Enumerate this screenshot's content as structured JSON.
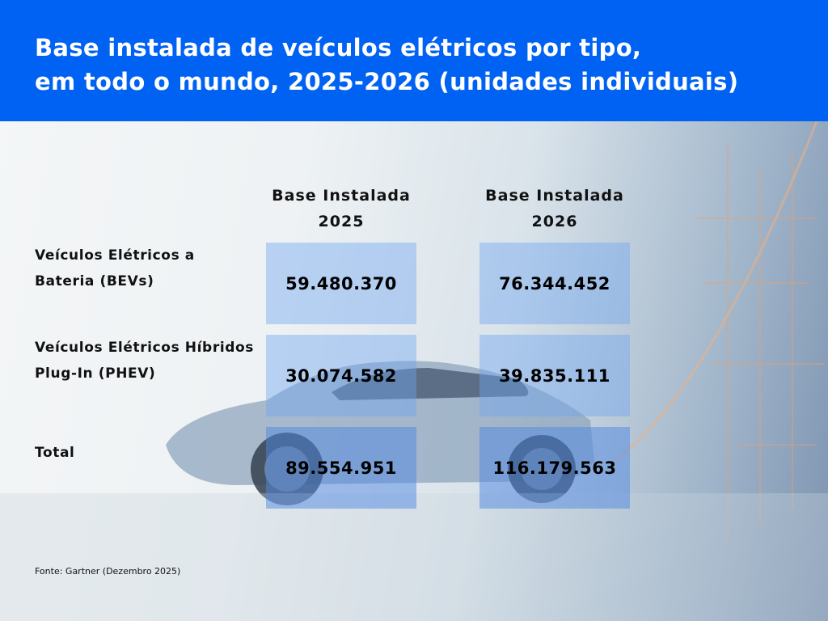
{
  "title_line1": "Base instalada de veículos elétricos por tipo,",
  "title_line2": "em todo o mundo, 2025-2026 (unidades individuais)",
  "chart_data": {
    "type": "table",
    "title": "Base instalada de veículos elétricos por tipo, em todo o mundo, 2025-2026 (unidades individuais)",
    "columns": [
      "Base Instalada 2025",
      "Base Instalada 2026"
    ],
    "column_lines": [
      [
        "Base Instalada",
        "2025"
      ],
      [
        "Base Instalada",
        "2026"
      ]
    ],
    "rows": [
      {
        "label_lines": [
          "Veículos Elétricos a",
          "Bateria (BEVs)"
        ],
        "values": [
          "59.480.370",
          "76.344.452"
        ]
      },
      {
        "label_lines": [
          "Veículos Elétricos Híbridos",
          "Plug-In (PHEV)"
        ],
        "values": [
          "30.074.582",
          "39.835.111"
        ]
      },
      {
        "label_lines": [
          "Total"
        ],
        "values": [
          "89.554.951",
          "116.179.563"
        ]
      }
    ]
  },
  "source": "Fonte: Gartner (Dezembro 2025)",
  "colors": {
    "header": "#0062f3",
    "cell": "#6ea5f0"
  }
}
